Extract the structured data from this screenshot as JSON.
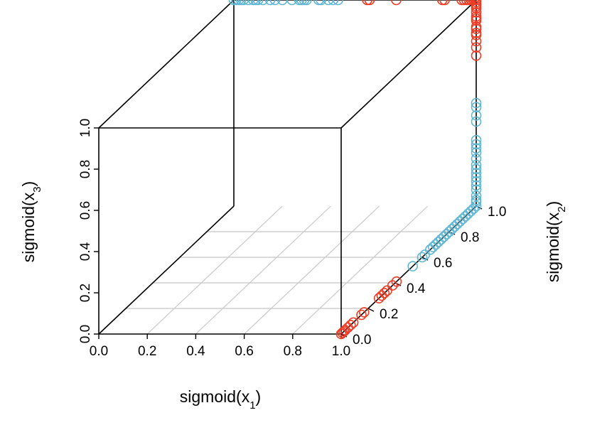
{
  "chart_data": {
    "type": "scatter",
    "title": "",
    "xlabel": "sigmoid(x1)",
    "ylabel": "sigmoid(x2)",
    "zlabel": "sigmoid(x3)",
    "axis_title_parts": {
      "x": {
        "base": "sigmoid(x",
        "sub": "1",
        "close": ")"
      },
      "y": {
        "base": "sigmoid(x",
        "sub": "2",
        "close": ")"
      },
      "z": {
        "base": "sigmoid(x",
        "sub": "3",
        "close": ")"
      }
    },
    "xlim": [
      0,
      1
    ],
    "ylim": [
      0,
      1
    ],
    "zlim": [
      0,
      1
    ],
    "x_ticks": [
      "0.0",
      "0.2",
      "0.4",
      "0.6",
      "0.8",
      "1.0"
    ],
    "y_ticks": [
      "0.0",
      "0.2",
      "0.4",
      "0.6",
      "0.8",
      "1.0"
    ],
    "z_ticks": [
      "0.0",
      "0.2",
      "0.4",
      "0.6",
      "0.8",
      "1.0"
    ],
    "grid": "floor",
    "series": [
      {
        "color": "#ee3b24",
        "points": [
          [
            1,
            0,
            0
          ],
          [
            1,
            0.01,
            0
          ],
          [
            1,
            0.02,
            0
          ],
          [
            1,
            0.03,
            0
          ],
          [
            1,
            0.05,
            0
          ],
          [
            1,
            0.07,
            0
          ],
          [
            1,
            0.09,
            0
          ],
          [
            1,
            0.15,
            0
          ],
          [
            1,
            0.17,
            0
          ],
          [
            1,
            0.28,
            0
          ],
          [
            1,
            0.3,
            0
          ],
          [
            1,
            0.32,
            0
          ],
          [
            1,
            0.34,
            0
          ],
          [
            1,
            0.38,
            0
          ],
          [
            1,
            0.41,
            0
          ],
          [
            1,
            1,
            0.73
          ],
          [
            1,
            1,
            0.77
          ],
          [
            1,
            1,
            0.8
          ],
          [
            1,
            1,
            0.83
          ],
          [
            1,
            1,
            0.84
          ],
          [
            1,
            1,
            0.86
          ],
          [
            1,
            1,
            0.87
          ],
          [
            1,
            1,
            0.9
          ],
          [
            1,
            1,
            0.91
          ],
          [
            1,
            1,
            0.92
          ],
          [
            1,
            1,
            0.94
          ],
          [
            1,
            1,
            0.96
          ],
          [
            1,
            1,
            0.97
          ],
          [
            1,
            1,
            0.98
          ],
          [
            1,
            1,
            0.99
          ],
          [
            1,
            1,
            1
          ],
          [
            0.55,
            1,
            1
          ],
          [
            0.56,
            1,
            1
          ],
          [
            0.67,
            1,
            1
          ],
          [
            0.86,
            1,
            1
          ],
          [
            0.87,
            1,
            1
          ],
          [
            0.94,
            1,
            1
          ],
          [
            0.95,
            1,
            1
          ],
          [
            0.96,
            1,
            1
          ],
          [
            0.97,
            1,
            1
          ],
          [
            0.98,
            1,
            1
          ],
          [
            0.99,
            1,
            1
          ]
        ]
      },
      {
        "color": "#5fb6d3",
        "points": [
          [
            1,
            0.53,
            0
          ],
          [
            1,
            0.6,
            0
          ],
          [
            1,
            0.62,
            0
          ],
          [
            1,
            0.66,
            0
          ],
          [
            1,
            0.68,
            0
          ],
          [
            1,
            0.7,
            0
          ],
          [
            1,
            0.72,
            0
          ],
          [
            1,
            0.74,
            0
          ],
          [
            1,
            0.76,
            0
          ],
          [
            1,
            0.78,
            0
          ],
          [
            1,
            0.8,
            0
          ],
          [
            1,
            0.82,
            0
          ],
          [
            1,
            0.84,
            0
          ],
          [
            1,
            0.86,
            0
          ],
          [
            1,
            0.88,
            0
          ],
          [
            1,
            0.9,
            0
          ],
          [
            1,
            0.92,
            0
          ],
          [
            1,
            0.94,
            0
          ],
          [
            1,
            0.96,
            0
          ],
          [
            1,
            0.98,
            0
          ],
          [
            1,
            1,
            0
          ],
          [
            1,
            1,
            0.02
          ],
          [
            1,
            1,
            0.03
          ],
          [
            1,
            1,
            0.05
          ],
          [
            1,
            1,
            0.08
          ],
          [
            1,
            1,
            0.1
          ],
          [
            1,
            1,
            0.12
          ],
          [
            1,
            1,
            0.14
          ],
          [
            1,
            1,
            0.16
          ],
          [
            1,
            1,
            0.18
          ],
          [
            1,
            1,
            0.2
          ],
          [
            1,
            1,
            0.23
          ],
          [
            1,
            1,
            0.26
          ],
          [
            1,
            1,
            0.28
          ],
          [
            1,
            1,
            0.3
          ],
          [
            1,
            1,
            0.32
          ],
          [
            1,
            1,
            0.41
          ],
          [
            1,
            1,
            0.44
          ],
          [
            1,
            1,
            0.48
          ],
          [
            1,
            1,
            0.5
          ],
          [
            0,
            1,
            1
          ],
          [
            0.01,
            1,
            1
          ],
          [
            0.02,
            1,
            1
          ],
          [
            0.03,
            1,
            1
          ],
          [
            0.04,
            1,
            1
          ],
          [
            0.06,
            1,
            1
          ],
          [
            0.08,
            1,
            1
          ],
          [
            0.09,
            1,
            1
          ],
          [
            0.1,
            1,
            1
          ],
          [
            0.12,
            1,
            1
          ],
          [
            0.15,
            1,
            1
          ],
          [
            0.17,
            1,
            1
          ],
          [
            0.2,
            1,
            1
          ],
          [
            0.24,
            1,
            1
          ],
          [
            0.27,
            1,
            1
          ],
          [
            0.28,
            1,
            1
          ],
          [
            0.29,
            1,
            1
          ],
          [
            0.3,
            1,
            1
          ],
          [
            0.35,
            1,
            1
          ],
          [
            0.36,
            1,
            1
          ],
          [
            0.39,
            1,
            1
          ],
          [
            0.41,
            1,
            1
          ],
          [
            0.43,
            1,
            1
          ]
        ]
      }
    ]
  }
}
